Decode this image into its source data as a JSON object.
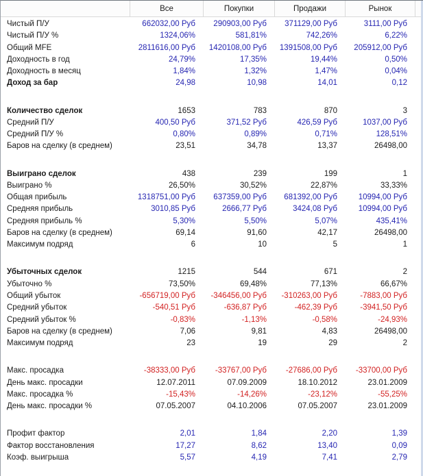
{
  "colors": {
    "profit_blue": "#2626b2",
    "loss_red": "#d22222",
    "neutral_black": "#1b1b1b",
    "header_background": "#fcfcfc",
    "grid_separator": "#d9d9d9"
  },
  "table": {
    "columns": [
      "Все",
      "Покупки",
      "Продажи",
      "Рынок"
    ],
    "sections": [
      {
        "rows": [
          {
            "label": "Чистый П/У",
            "bold": false,
            "value_color": "blue",
            "values": [
              "662032,00 Руб",
              "290903,00 Руб",
              "371129,00 Руб",
              "3111,00 Руб"
            ]
          },
          {
            "label": "Чистый П/У %",
            "bold": false,
            "value_color": "blue",
            "values": [
              "1324,06%",
              "581,81%",
              "742,26%",
              "6,22%"
            ]
          },
          {
            "label": "Общий MFE",
            "bold": false,
            "value_color": "blue",
            "values": [
              "2811616,00 Руб",
              "1420108,00 Руб",
              "1391508,00 Руб",
              "205912,00 Руб"
            ]
          },
          {
            "label": "Доходность в год",
            "bold": false,
            "value_color": "blue",
            "values": [
              "24,79%",
              "17,35%",
              "19,44%",
              "0,50%"
            ]
          },
          {
            "label": "Доходность в месяц",
            "bold": false,
            "value_color": "blue",
            "values": [
              "1,84%",
              "1,32%",
              "1,47%",
              "0,04%"
            ]
          },
          {
            "label": "Доход за бар",
            "bold": true,
            "value_color": "blue",
            "values": [
              "24,98",
              "10,98",
              "14,01",
              "0,12"
            ]
          }
        ]
      },
      {
        "rows": [
          {
            "label": "Количество сделок",
            "bold": true,
            "value_color": "black",
            "values": [
              "1653",
              "783",
              "870",
              "3"
            ]
          },
          {
            "label": "Средний П/У",
            "bold": false,
            "value_color": "blue",
            "values": [
              "400,50 Руб",
              "371,52 Руб",
              "426,59 Руб",
              "1037,00 Руб"
            ]
          },
          {
            "label": "Средний П/У %",
            "bold": false,
            "value_color": "blue",
            "values": [
              "0,80%",
              "0,89%",
              "0,71%",
              "128,51%"
            ]
          },
          {
            "label": "Баров на сделку (в среднем)",
            "bold": false,
            "value_color": "black",
            "values": [
              "23,51",
              "34,78",
              "13,37",
              "26498,00"
            ]
          }
        ]
      },
      {
        "rows": [
          {
            "label": "Выиграно сделок",
            "bold": true,
            "value_color": "black",
            "values": [
              "438",
              "239",
              "199",
              "1"
            ]
          },
          {
            "label": "Выиграно %",
            "bold": false,
            "value_color": "black",
            "values": [
              "26,50%",
              "30,52%",
              "22,87%",
              "33,33%"
            ]
          },
          {
            "label": "Общая прибыль",
            "bold": false,
            "value_color": "blue",
            "values": [
              "1318751,00 Руб",
              "637359,00 Руб",
              "681392,00 Руб",
              "10994,00 Руб"
            ]
          },
          {
            "label": "Средняя прибыль",
            "bold": false,
            "value_color": "blue",
            "values": [
              "3010,85 Руб",
              "2666,77 Руб",
              "3424,08 Руб",
              "10994,00 Руб"
            ]
          },
          {
            "label": "Средняя прибыль %",
            "bold": false,
            "value_color": "blue",
            "values": [
              "5,30%",
              "5,50%",
              "5,07%",
              "435,41%"
            ]
          },
          {
            "label": "Баров на сделку (в среднем)",
            "bold": false,
            "value_color": "black",
            "values": [
              "69,14",
              "91,60",
              "42,17",
              "26498,00"
            ]
          },
          {
            "label": "Максимум подряд",
            "bold": false,
            "value_color": "black",
            "values": [
              "6",
              "10",
              "5",
              "1"
            ]
          }
        ]
      },
      {
        "rows": [
          {
            "label": "Убыточных сделок",
            "bold": true,
            "value_color": "black",
            "values": [
              "1215",
              "544",
              "671",
              "2"
            ]
          },
          {
            "label": "Убыточно %",
            "bold": false,
            "value_color": "black",
            "values": [
              "73,50%",
              "69,48%",
              "77,13%",
              "66,67%"
            ]
          },
          {
            "label": "Общий убыток",
            "bold": false,
            "value_color": "red",
            "values": [
              "-656719,00 Руб",
              "-346456,00 Руб",
              "-310263,00 Руб",
              "-7883,00 Руб"
            ]
          },
          {
            "label": "Средний убыток",
            "bold": false,
            "value_color": "red",
            "values": [
              "-540,51 Руб",
              "-636,87 Руб",
              "-462,39 Руб",
              "-3941,50 Руб"
            ]
          },
          {
            "label": "Средний убыток %",
            "bold": false,
            "value_color": "red",
            "values": [
              "-0,83%",
              "-1,13%",
              "-0,58%",
              "-24,93%"
            ]
          },
          {
            "label": "Баров на сделку (в среднем)",
            "bold": false,
            "value_color": "black",
            "values": [
              "7,06",
              "9,81",
              "4,83",
              "26498,00"
            ]
          },
          {
            "label": "Максимум подряд",
            "bold": false,
            "value_color": "black",
            "values": [
              "23",
              "19",
              "29",
              "2"
            ]
          }
        ]
      },
      {
        "rows": [
          {
            "label": "Макс. просадка",
            "bold": false,
            "value_color": "red",
            "values": [
              "-38333,00 Руб",
              "-33767,00 Руб",
              "-27686,00 Руб",
              "-33700,00 Руб"
            ]
          },
          {
            "label": "День макс. просадки",
            "bold": false,
            "value_color": "black",
            "values": [
              "12.07.2011",
              "07.09.2009",
              "18.10.2012",
              "23.01.2009"
            ]
          },
          {
            "label": "Макс. просадка %",
            "bold": false,
            "value_color": "red",
            "values": [
              "-15,43%",
              "-14,26%",
              "-23,12%",
              "-55,25%"
            ]
          },
          {
            "label": "День макс. просадки %",
            "bold": false,
            "value_color": "black",
            "values": [
              "07.05.2007",
              "04.10.2006",
              "07.05.2007",
              "23.01.2009"
            ]
          }
        ]
      },
      {
        "rows": [
          {
            "label": "Профит фактор",
            "bold": false,
            "value_color": "blue",
            "values": [
              "2,01",
              "1,84",
              "2,20",
              "1,39"
            ]
          },
          {
            "label": "Фактор восстановления",
            "bold": false,
            "value_color": "blue",
            "values": [
              "17,27",
              "8,62",
              "13,40",
              "0,09"
            ]
          },
          {
            "label": "Коэф. выигрыша",
            "bold": false,
            "value_color": "blue",
            "values": [
              "5,57",
              "4,19",
              "7,41",
              "2,79"
            ]
          }
        ]
      }
    ]
  }
}
